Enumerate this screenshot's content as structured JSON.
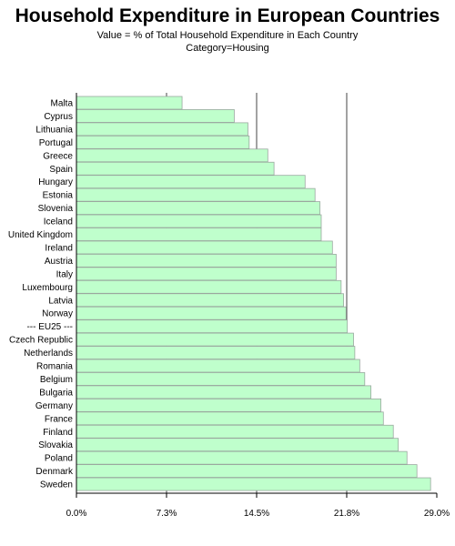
{
  "chart_data": {
    "type": "bar",
    "orientation": "horizontal",
    "title": "Household Expenditure in European Countries",
    "subtitle": "Value = % of Total Household Expenditure in Each Country",
    "subtitle2": "Category=Housing",
    "categories": [
      "Malta",
      "Cyprus",
      "Lithuania",
      "Portugal",
      "Greece",
      "Spain",
      "Hungary",
      "Estonia",
      "Slovenia",
      "Iceland",
      "United Kingdom",
      "Ireland",
      "Austria",
      "Italy",
      "Luxembourg",
      "Latvia",
      "Norway",
      "--- EU25 ---",
      "Czech Republic",
      "Netherlands",
      "Romania",
      "Belgium",
      "Bulgaria",
      "Germany",
      "France",
      "Finland",
      "Slovakia",
      "Poland",
      "Denmark",
      "Sweden"
    ],
    "values": [
      8.5,
      12.7,
      13.8,
      13.9,
      15.4,
      15.9,
      18.4,
      19.2,
      19.6,
      19.7,
      19.7,
      20.6,
      20.9,
      20.9,
      21.3,
      21.5,
      21.7,
      21.8,
      22.3,
      22.4,
      22.8,
      23.2,
      23.7,
      24.5,
      24.7,
      25.5,
      25.9,
      26.6,
      27.4,
      28.5
    ],
    "xlim": [
      0,
      29.0
    ],
    "ticks": [
      "0.0%",
      "7.3%",
      "14.5%",
      "21.8%",
      "29.0%"
    ],
    "tick_values": [
      0,
      7.25,
      14.5,
      21.75,
      29.0
    ],
    "bar_color": "#bfffcc",
    "bar_edge_color": "#9aa89f",
    "grid": true
  }
}
